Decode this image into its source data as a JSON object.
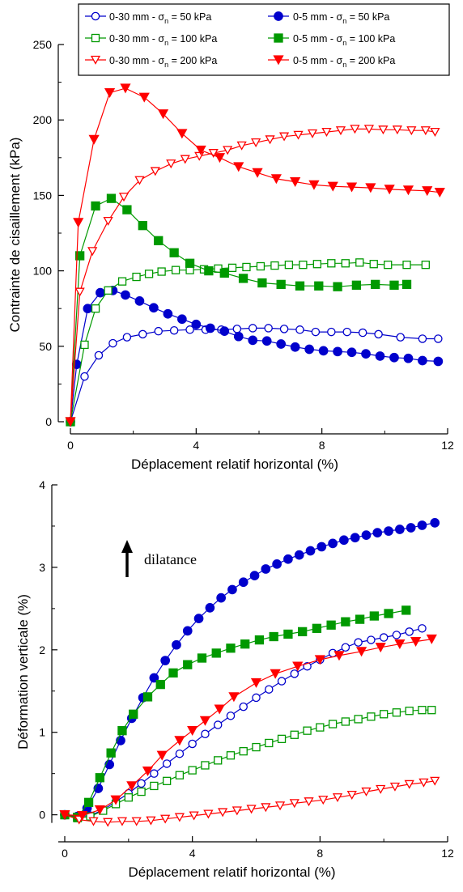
{
  "chart_data": [
    {
      "type": "line",
      "xlabel": "Déplacement relatif horizontal (%)",
      "ylabel": "Contrainte de cisaillement (kPa)",
      "xlim": [
        0,
        12
      ],
      "ylim": [
        0,
        250
      ],
      "xticks": [
        "0",
        "4",
        "8",
        "12"
      ],
      "yticks": [
        "0",
        "50",
        "100",
        "150",
        "200",
        "250"
      ],
      "grid": false,
      "legend": {
        "placement": "top",
        "entries": [
          {
            "pre": "0-30 mm - σ",
            "sub": "n",
            "post": " =  50 kPa"
          },
          {
            "pre": "0-30 mm - σ",
            "sub": "n",
            "post": " =  100 kPa"
          },
          {
            "pre": "0-30 mm - σ",
            "sub": "n",
            "post": " =  200 kPa"
          },
          {
            "pre": "0-5 mm - σ",
            "sub": "n",
            "post": " =  50 kPa"
          },
          {
            "pre": "0-5 mm - σ",
            "sub": "n",
            "post": " =  100 kPa"
          },
          {
            "pre": "0-5 mm - σ",
            "sub": "n",
            "post": " =  200 kPa"
          }
        ]
      },
      "series": [
        {
          "color": "#0000cc",
          "marker": "circle",
          "filled": false,
          "x": [
            0,
            0.45,
            0.9,
            1.35,
            1.8,
            2.3,
            2.8,
            3.3,
            3.8,
            4.3,
            4.8,
            5.3,
            5.8,
            6.3,
            6.8,
            7.3,
            7.8,
            8.3,
            8.8,
            9.3,
            9.8,
            10.5,
            11.2,
            11.7
          ],
          "y": [
            0,
            30,
            44,
            52,
            56,
            58,
            60,
            60.5,
            61,
            61,
            61,
            61.5,
            62,
            62,
            61.5,
            61,
            59.5,
            59.5,
            59.5,
            59,
            58,
            56,
            55,
            55
          ]
        },
        {
          "color": "#0000cc",
          "marker": "circle",
          "filled": true,
          "x": [
            0,
            0.2,
            0.55,
            0.95,
            1.35,
            1.75,
            2.2,
            2.65,
            3.1,
            3.55,
            4.0,
            4.45,
            4.9,
            5.35,
            5.8,
            6.25,
            6.7,
            7.15,
            7.6,
            8.05,
            8.5,
            8.95,
            9.4,
            9.85,
            10.3,
            10.75,
            11.2,
            11.7
          ],
          "y": [
            0,
            38,
            75,
            85.5,
            87,
            84,
            80,
            75.5,
            71.5,
            68,
            64.5,
            62,
            60,
            56.5,
            54,
            53.5,
            51.5,
            49.5,
            48,
            47,
            46.5,
            46,
            45,
            43.5,
            42.5,
            42,
            40.5,
            40
          ]
        },
        {
          "color": "#009900",
          "marker": "square",
          "filled": false,
          "x": [
            0,
            0.45,
            0.8,
            1.2,
            1.65,
            2.1,
            2.5,
            2.9,
            3.35,
            3.8,
            4.25,
            4.7,
            5.15,
            5.6,
            6.05,
            6.5,
            6.95,
            7.4,
            7.85,
            8.3,
            8.75,
            9.2,
            9.65,
            10.1,
            10.7,
            11.3
          ],
          "y": [
            0,
            51,
            75,
            87,
            93,
            96,
            98,
            99.5,
            100.5,
            100.5,
            101,
            101.5,
            102,
            102.5,
            103,
            103.5,
            104,
            104,
            104.5,
            105,
            105,
            105.5,
            104.5,
            104,
            104,
            104
          ]
        },
        {
          "color": "#009900",
          "marker": "square",
          "filled": true,
          "x": [
            0,
            0.3,
            0.8,
            1.3,
            1.8,
            2.3,
            2.8,
            3.3,
            3.8,
            4.4,
            4.9,
            5.5,
            6.1,
            6.7,
            7.3,
            7.9,
            8.5,
            9.1,
            9.7,
            10.3,
            10.7
          ],
          "y": [
            0,
            110,
            143,
            148,
            140.5,
            130,
            120,
            112,
            105,
            100,
            98.5,
            95,
            92,
            91,
            90,
            90,
            89.5,
            90.5,
            91,
            90.5,
            91
          ]
        },
        {
          "color": "#ff0000",
          "marker": "triangle-down",
          "filled": false,
          "x": [
            0,
            0.3,
            0.7,
            1.2,
            1.7,
            2.2,
            2.7,
            3.2,
            3.65,
            4.1,
            4.55,
            5.0,
            5.45,
            5.9,
            6.35,
            6.8,
            7.25,
            7.7,
            8.15,
            8.6,
            9.05,
            9.5,
            9.95,
            10.4,
            10.85,
            11.3,
            11.6
          ],
          "y": [
            0,
            86,
            113,
            133,
            149,
            160,
            166,
            171,
            174,
            176,
            178,
            180,
            183,
            185,
            187,
            189,
            190,
            191,
            192,
            193,
            194,
            194,
            193.5,
            193.5,
            193,
            193,
            192
          ]
        },
        {
          "color": "#ff0000",
          "marker": "triangle-down",
          "filled": true,
          "x": [
            0,
            0.25,
            0.75,
            1.25,
            1.75,
            2.35,
            2.95,
            3.55,
            4.15,
            4.75,
            5.35,
            5.95,
            6.55,
            7.15,
            7.75,
            8.35,
            8.95,
            9.55,
            10.15,
            10.75,
            11.35,
            11.75
          ],
          "y": [
            0,
            132,
            187,
            218,
            221,
            215,
            204,
            191,
            180,
            175,
            169,
            165,
            161,
            159,
            157,
            156,
            155.5,
            155,
            154,
            153.5,
            153,
            152
          ]
        }
      ]
    },
    {
      "type": "line",
      "xlabel": "Déplacement relatif horizontal (%)",
      "ylabel": "Déformation verticale (%)",
      "xlim": [
        0,
        12
      ],
      "ylim": [
        -0.2,
        4
      ],
      "xticks": [
        "0",
        "4",
        "8",
        "12"
      ],
      "yticks": [
        "0",
        "1",
        "2",
        "3",
        "4"
      ],
      "grid": false,
      "annotation": "dilatance",
      "series": [
        {
          "color": "#0000cc",
          "marker": "circle",
          "filled": false,
          "x": [
            0,
            0.4,
            0.8,
            1.2,
            1.6,
            2.0,
            2.4,
            2.8,
            3.2,
            3.6,
            4.0,
            4.4,
            4.8,
            5.2,
            5.6,
            6.0,
            6.4,
            6.8,
            7.2,
            7.6,
            8.0,
            8.4,
            8.8,
            9.2,
            9.6,
            10.0,
            10.4,
            10.8,
            11.2
          ],
          "y": [
            0,
            -0.02,
            -0.01,
            0.06,
            0.16,
            0.26,
            0.38,
            0.5,
            0.62,
            0.74,
            0.86,
            0.98,
            1.09,
            1.2,
            1.31,
            1.42,
            1.52,
            1.62,
            1.71,
            1.8,
            1.88,
            1.96,
            2.03,
            2.09,
            2.12,
            2.15,
            2.18,
            2.22,
            2.26
          ]
        },
        {
          "color": "#0000cc",
          "marker": "circle",
          "filled": true,
          "x": [
            0,
            0.4,
            0.7,
            1.05,
            1.4,
            1.75,
            2.1,
            2.45,
            2.8,
            3.15,
            3.5,
            3.85,
            4.2,
            4.55,
            4.9,
            5.25,
            5.6,
            5.95,
            6.3,
            6.65,
            7.0,
            7.35,
            7.7,
            8.05,
            8.4,
            8.75,
            9.1,
            9.45,
            9.8,
            10.15,
            10.5,
            10.85,
            11.2,
            11.6
          ],
          "y": [
            0,
            -0.02,
            0.08,
            0.32,
            0.61,
            0.9,
            1.17,
            1.42,
            1.66,
            1.87,
            2.06,
            2.23,
            2.38,
            2.51,
            2.63,
            2.73,
            2.82,
            2.9,
            2.98,
            3.04,
            3.1,
            3.15,
            3.2,
            3.25,
            3.29,
            3.33,
            3.36,
            3.39,
            3.42,
            3.44,
            3.46,
            3.48,
            3.51,
            3.54
          ]
        },
        {
          "color": "#009900",
          "marker": "square",
          "filled": false,
          "x": [
            0,
            0.4,
            0.8,
            1.2,
            1.6,
            2.0,
            2.4,
            2.8,
            3.2,
            3.6,
            4.0,
            4.4,
            4.8,
            5.2,
            5.6,
            6.0,
            6.4,
            6.8,
            7.2,
            7.6,
            8.0,
            8.4,
            8.8,
            9.2,
            9.6,
            10.0,
            10.4,
            10.8,
            11.2,
            11.5
          ],
          "y": [
            0,
            -0.04,
            -0.02,
            0.05,
            0.13,
            0.21,
            0.28,
            0.35,
            0.41,
            0.48,
            0.54,
            0.6,
            0.66,
            0.72,
            0.77,
            0.82,
            0.87,
            0.92,
            0.97,
            1.02,
            1.06,
            1.1,
            1.13,
            1.16,
            1.19,
            1.22,
            1.24,
            1.26,
            1.27,
            1.27
          ]
        },
        {
          "color": "#009900",
          "marker": "square",
          "filled": true,
          "x": [
            0,
            0.4,
            0.75,
            1.1,
            1.45,
            1.8,
            2.15,
            2.6,
            3.0,
            3.4,
            3.85,
            4.3,
            4.75,
            5.2,
            5.65,
            6.1,
            6.55,
            7.0,
            7.45,
            7.9,
            8.35,
            8.8,
            9.25,
            9.7,
            10.15,
            10.7
          ],
          "y": [
            0,
            -0.03,
            0.15,
            0.45,
            0.75,
            1.02,
            1.22,
            1.43,
            1.58,
            1.72,
            1.82,
            1.9,
            1.96,
            2.02,
            2.07,
            2.12,
            2.16,
            2.19,
            2.22,
            2.26,
            2.3,
            2.34,
            2.37,
            2.41,
            2.44,
            2.48
          ]
        },
        {
          "color": "#ff0000",
          "marker": "triangle-down",
          "filled": false,
          "x": [
            0,
            0.45,
            0.9,
            1.35,
            1.8,
            2.25,
            2.7,
            3.15,
            3.6,
            4.05,
            4.5,
            4.95,
            5.4,
            5.85,
            6.3,
            6.75,
            7.2,
            7.65,
            8.1,
            8.55,
            9.0,
            9.45,
            9.9,
            10.35,
            10.8,
            11.25,
            11.6
          ],
          "y": [
            0,
            -0.06,
            -0.08,
            -0.09,
            -0.08,
            -0.08,
            -0.07,
            -0.05,
            -0.03,
            -0.01,
            0.01,
            0.03,
            0.05,
            0.07,
            0.09,
            0.11,
            0.14,
            0.16,
            0.18,
            0.21,
            0.24,
            0.28,
            0.31,
            0.34,
            0.37,
            0.39,
            0.41
          ]
        },
        {
          "color": "#ff0000",
          "marker": "triangle-down",
          "filled": true,
          "x": [
            0,
            0.55,
            1.1,
            1.6,
            2.1,
            2.6,
            3.05,
            3.6,
            4.0,
            4.4,
            4.85,
            5.3,
            6.0,
            6.6,
            7.3,
            8.0,
            8.6,
            9.3,
            9.9,
            10.5,
            11.0,
            11.5
          ],
          "y": [
            0,
            -0.01,
            0.06,
            0.18,
            0.35,
            0.53,
            0.72,
            0.9,
            1.02,
            1.14,
            1.28,
            1.43,
            1.6,
            1.71,
            1.8,
            1.88,
            1.93,
            1.98,
            2.03,
            2.07,
            2.1,
            2.13
          ]
        }
      ]
    }
  ]
}
